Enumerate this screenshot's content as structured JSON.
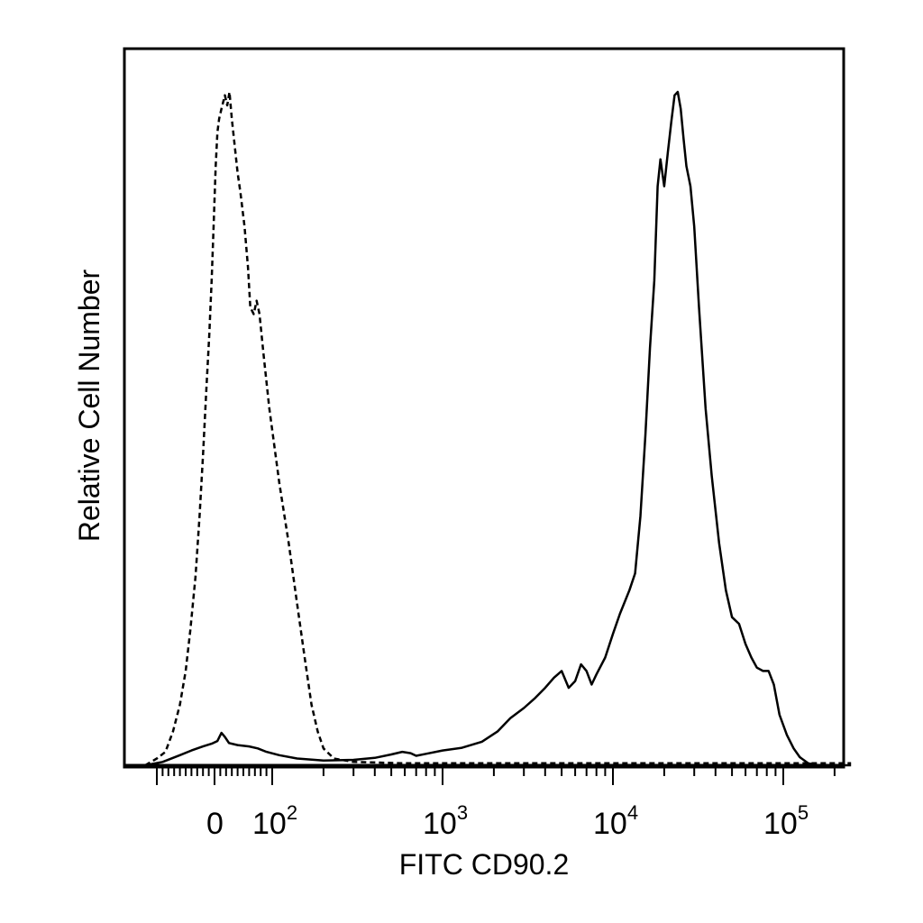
{
  "chart_data": {
    "type": "line",
    "title": "",
    "xlabel": "FITC CD90.2",
    "ylabel": "Relative Cell Number",
    "x_scale": "biexponential",
    "x_ticks": [
      {
        "value": 0,
        "base": "0",
        "exp": ""
      },
      {
        "value": 100,
        "base": "10",
        "exp": "2"
      },
      {
        "value": 1000,
        "base": "10",
        "exp": "3"
      },
      {
        "value": 10000,
        "base": "10",
        "exp": "4"
      },
      {
        "value": 100000,
        "base": "10",
        "exp": "5"
      }
    ],
    "xlim": [
      -120,
      250000
    ],
    "ylim": [
      0,
      100
    ],
    "grid": false,
    "legend": "none",
    "colors": {
      "line": "#000000",
      "frame": "#000000"
    },
    "series": [
      {
        "style": "dashed",
        "points": [
          [
            -120,
            0
          ],
          [
            -100,
            1
          ],
          [
            -85,
            2
          ],
          [
            -72,
            5
          ],
          [
            -60,
            9
          ],
          [
            -50,
            14
          ],
          [
            -42,
            20
          ],
          [
            -33,
            28
          ],
          [
            -26,
            37
          ],
          [
            -20,
            46
          ],
          [
            -14,
            56
          ],
          [
            -9,
            64
          ],
          [
            -5,
            72
          ],
          [
            -2,
            79
          ],
          [
            0,
            84
          ],
          [
            2,
            89
          ],
          [
            5,
            94
          ],
          [
            8,
            96
          ],
          [
            12,
            97.5
          ],
          [
            18,
            99.5
          ],
          [
            22,
            98
          ],
          [
            26,
            100
          ],
          [
            30,
            96
          ],
          [
            35,
            92
          ],
          [
            40,
            88
          ],
          [
            45,
            85
          ],
          [
            52,
            80
          ],
          [
            58,
            74
          ],
          [
            62,
            68
          ],
          [
            68,
            67
          ],
          [
            73,
            69
          ],
          [
            78,
            67
          ],
          [
            85,
            61
          ],
          [
            95,
            53
          ],
          [
            110,
            42
          ],
          [
            125,
            33
          ],
          [
            140,
            24
          ],
          [
            155,
            16
          ],
          [
            170,
            9
          ],
          [
            185,
            5
          ],
          [
            200,
            2.5
          ],
          [
            230,
            1
          ],
          [
            300,
            0.5
          ],
          [
            600,
            0.3
          ],
          [
            2000,
            0.3
          ],
          [
            10000,
            0.3
          ],
          [
            100000,
            0.3
          ],
          [
            250000,
            0.3
          ]
        ]
      },
      {
        "style": "solid",
        "points": [
          [
            -120,
            0
          ],
          [
            -90,
            0.5
          ],
          [
            -60,
            1.5
          ],
          [
            -40,
            2.2
          ],
          [
            -20,
            2.8
          ],
          [
            -5,
            3.2
          ],
          [
            5,
            3.6
          ],
          [
            12,
            4.8
          ],
          [
            18,
            4.2
          ],
          [
            25,
            3.3
          ],
          [
            40,
            3.0
          ],
          [
            60,
            2.8
          ],
          [
            75,
            2.5
          ],
          [
            90,
            2.0
          ],
          [
            110,
            1.5
          ],
          [
            140,
            1.0
          ],
          [
            200,
            0.7
          ],
          [
            300,
            0.8
          ],
          [
            400,
            1.1
          ],
          [
            500,
            1.6
          ],
          [
            580,
            2.0
          ],
          [
            650,
            1.8
          ],
          [
            700,
            1.4
          ],
          [
            800,
            1.7
          ],
          [
            1000,
            2.2
          ],
          [
            1300,
            2.6
          ],
          [
            1700,
            3.5
          ],
          [
            2100,
            5.0
          ],
          [
            2500,
            7.0
          ],
          [
            3000,
            8.5
          ],
          [
            3500,
            10.0
          ],
          [
            4000,
            11.5
          ],
          [
            4500,
            13.0
          ],
          [
            5000,
            14.0
          ],
          [
            5500,
            11.5
          ],
          [
            6000,
            12.5
          ],
          [
            6500,
            15.0
          ],
          [
            7000,
            14.0
          ],
          [
            7500,
            12.0
          ],
          [
            8000,
            13.5
          ],
          [
            9000,
            16.0
          ],
          [
            10000,
            19.5
          ],
          [
            11000,
            22.5
          ],
          [
            12500,
            26.0
          ],
          [
            13500,
            28.5
          ],
          [
            14500,
            37.0
          ],
          [
            15500,
            49.0
          ],
          [
            16500,
            62.0
          ],
          [
            17500,
            72.0
          ],
          [
            18300,
            86.0
          ],
          [
            19000,
            90.0
          ],
          [
            20000,
            86.0
          ],
          [
            21000,
            91.0
          ],
          [
            22000,
            95.5
          ],
          [
            23000,
            99.5
          ],
          [
            24000,
            100.0
          ],
          [
            25000,
            97.5
          ],
          [
            26000,
            93.0
          ],
          [
            27000,
            89.0
          ],
          [
            28500,
            86.0
          ],
          [
            30000,
            80.0
          ],
          [
            32000,
            68.0
          ],
          [
            35000,
            53.0
          ],
          [
            38000,
            43.0
          ],
          [
            42000,
            33.0
          ],
          [
            46000,
            26.0
          ],
          [
            50000,
            22.0
          ],
          [
            55000,
            21.0
          ],
          [
            60000,
            18.0
          ],
          [
            65000,
            16.0
          ],
          [
            70000,
            14.5
          ],
          [
            76000,
            14.0
          ],
          [
            82000,
            14.0
          ],
          [
            88000,
            12.0
          ],
          [
            95000,
            7.5
          ],
          [
            105000,
            4.5
          ],
          [
            115000,
            2.5
          ],
          [
            125000,
            1.2
          ],
          [
            140000,
            0.3
          ],
          [
            160000,
            0.0
          ],
          [
            250000,
            0.0
          ]
        ]
      }
    ]
  }
}
